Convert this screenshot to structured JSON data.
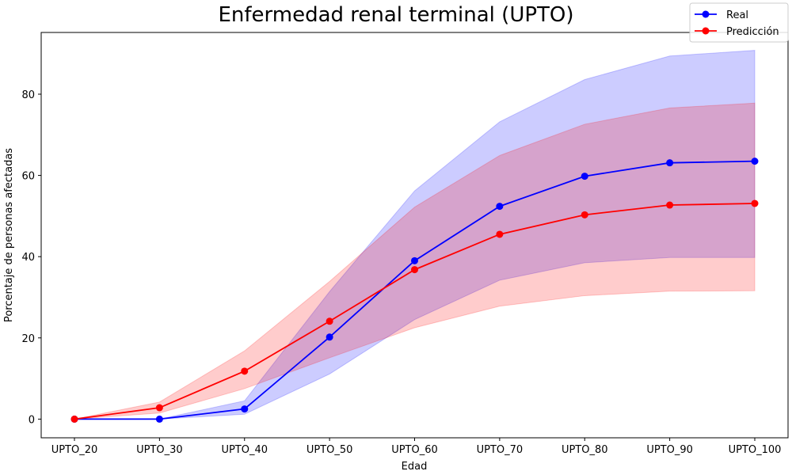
{
  "chart_data": {
    "type": "line",
    "title": "Enfermedad renal terminal (UPTO)",
    "xlabel": "Edad",
    "ylabel": "Porcentaje de personas afectadas",
    "categories": [
      "UPTO_20",
      "UPTO_30",
      "UPTO_40",
      "UPTO_50",
      "UPTO_60",
      "UPTO_70",
      "UPTO_80",
      "UPTO_90",
      "UPTO_100"
    ],
    "ylim": [
      -4.6,
      95.2
    ],
    "yticks": [
      0,
      20,
      40,
      60,
      80
    ],
    "grid": false,
    "legend_position": "top-right",
    "series": [
      {
        "name": "Real",
        "color": "#0000ff",
        "band_color": "#0000ff",
        "values": [
          0,
          0,
          2.5,
          20.2,
          39.0,
          52.4,
          59.8,
          63.1,
          63.5
        ],
        "lower": [
          0,
          0,
          1.2,
          11.1,
          24.5,
          34.2,
          38.5,
          39.8,
          39.8
        ],
        "upper": [
          0,
          0,
          4.5,
          31.4,
          56.2,
          73.2,
          83.6,
          89.4,
          90.8
        ]
      },
      {
        "name": "Predicción",
        "color": "#ff0000",
        "band_color": "#ff0000",
        "values": [
          0,
          2.8,
          11.8,
          24.1,
          36.8,
          45.5,
          50.3,
          52.7,
          53.1
        ],
        "lower": [
          0,
          1.5,
          7.5,
          15.1,
          22.5,
          27.8,
          30.4,
          31.5,
          31.6
        ],
        "upper": [
          0,
          4.2,
          16.8,
          33.9,
          52.2,
          64.9,
          72.6,
          76.6,
          77.8
        ]
      }
    ]
  }
}
